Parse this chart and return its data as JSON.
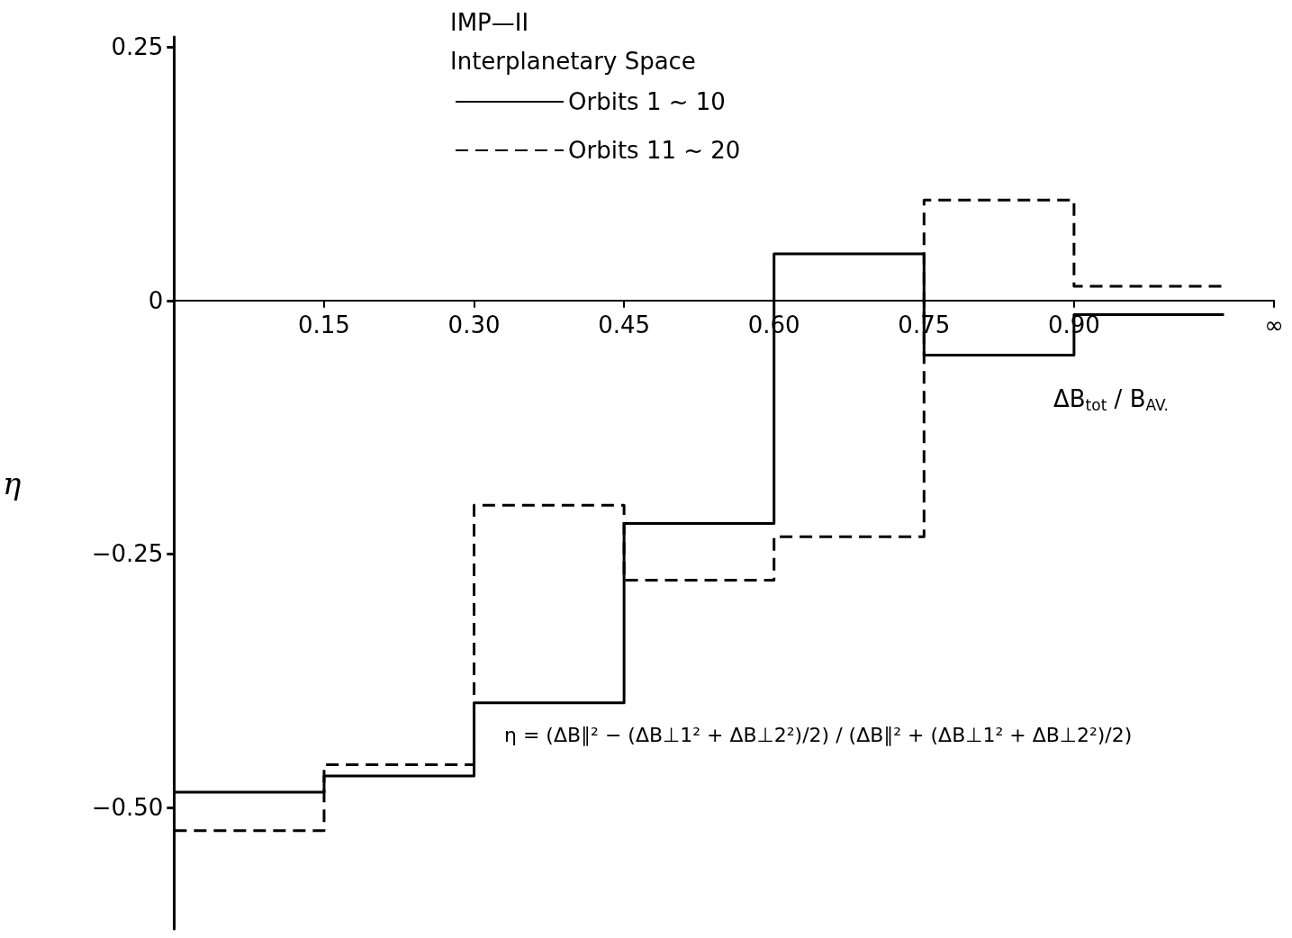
{
  "chart_data": {
    "type": "step",
    "title": "IMP—II",
    "subtitle": "Interplanetary Space",
    "xlabel": "ΔB$_{tot}$ / B$_{AV.}$",
    "ylabel": "η",
    "annotations": [
      "η = (ΔB∥² − (ΔB⊥1² + ΔB⊥2²)/2) / (ΔB∥² + (ΔB⊥1² + ΔB⊥2²)/2)"
    ],
    "x": [
      0,
      0.15,
      0.3,
      0.45,
      0.6,
      0.75,
      0.9,
      1.05
    ],
    "series": [
      {
        "name": "Orbits 1 ~ 10",
        "color": "#000000",
        "line_style": "solid",
        "values": [
          -0.485,
          -0.469,
          -0.397,
          -0.22,
          0.046,
          -0.054,
          -0.014,
          -0.014
        ]
      },
      {
        "name": "Orbits 11 ~ 20",
        "color": "#000000",
        "line_style": "dashed",
        "values": [
          -0.523,
          -0.458,
          -0.202,
          -0.276,
          -0.233,
          0.099,
          0.014,
          0.014
        ]
      }
    ],
    "xlim": [
      0,
      1.1
    ],
    "xticks": [
      0.15,
      {
        "value": 0.3,
        "label": "0.30"
      },
      0.45,
      {
        "value": 0.6,
        "label": "0.60"
      },
      0.75,
      {
        "value": 0.9,
        "label": "0.90"
      },
      {
        "value": 1.1,
        "label": "∞"
      }
    ],
    "ylim": [
      -0.62,
      0.26
    ],
    "yticks": [
      {
        "value": -0.5,
        "label": "−0.50"
      },
      {
        "value": -0.25,
        "label": "−0.25"
      },
      0,
      0.25
    ],
    "grid": false,
    "legend": "top",
    "marker": "none"
  }
}
